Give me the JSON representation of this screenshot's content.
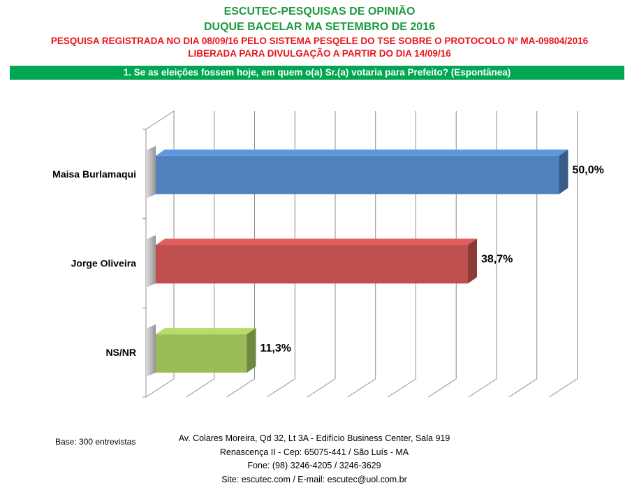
{
  "header": {
    "line1": "ESCUTEC-PESQUISAS DE OPINIÃO",
    "line2": "DUQUE BACELAR MA SETEMBRO DE 2016",
    "line3": "PESQUISA REGISTRADA NO DIA 08/09/16 PELO SISTEMA PESQELE DO TSE SOBRE O PROTOCOLO Nº MA-09804/2016",
    "line4": "LIBERADA PARA DIVULGAÇÃO A PARTIR DO DIA 14/09/16"
  },
  "question": "1. Se as eleições fossem hoje, em quem o(a) Sr.(a) votaria para Prefeito? (Espontânea)",
  "chart_data": {
    "type": "bar",
    "orientation": "horizontal",
    "style": "3d",
    "categories": [
      "Maisa Burlamaqui",
      "Jorge Oliveira",
      "NS/NR"
    ],
    "values": [
      50.0,
      38.7,
      11.3
    ],
    "value_labels": [
      "50,0%",
      "38,7%",
      "11,3%"
    ],
    "colors": [
      "#4f81bd",
      "#c0504d",
      "#9bbb59"
    ],
    "xlim": [
      0,
      50
    ],
    "grid": true,
    "legend": "none"
  },
  "footer": {
    "base": "Base: 300 entrevistas",
    "address_line1": "Av. Colares Moreira, Qd 32, Lt 3A - Edifício Business Center, Sala 919",
    "address_line2": "Renascença II - Cep: 65075-441 / São Luís - MA",
    "address_line3": "Fone: (98) 3246-4205 / 3246-3629",
    "address_line4": "Site: escutec.com / E-mail: escutec@uol.com.br"
  }
}
